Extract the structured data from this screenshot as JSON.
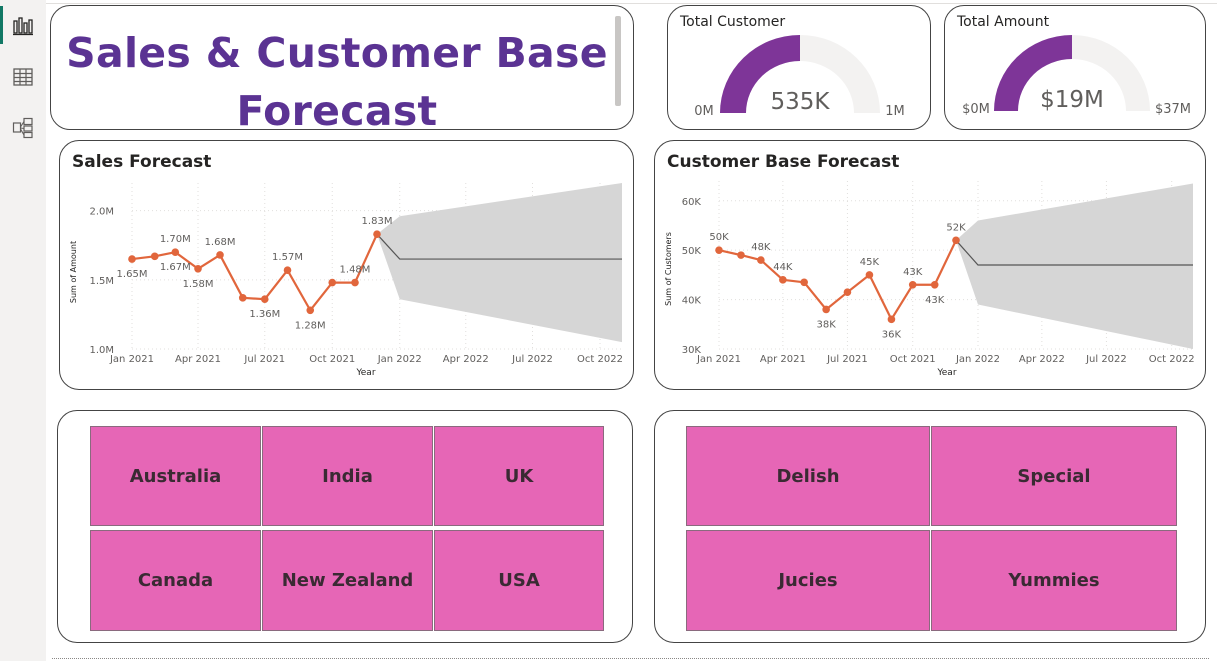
{
  "nav": {
    "items": [
      {
        "name": "report-view",
        "icon": "bar-chart-icon",
        "active": true
      },
      {
        "name": "table-view",
        "icon": "table-icon",
        "active": false
      },
      {
        "name": "model-view",
        "icon": "model-icon",
        "active": false
      }
    ]
  },
  "header": {
    "title": "Sales & Customer Base Forecast"
  },
  "kpis": [
    {
      "title": "Total Customer",
      "value": "535K",
      "min_label": "0M",
      "max_label": "1M",
      "fill_fraction": 0.5
    },
    {
      "title": "Total Amount",
      "value": "$19M",
      "min_label": "$0M",
      "max_label": "$37M",
      "fill_fraction": 0.5
    }
  ],
  "colors": {
    "accent": "#5b3393",
    "gauge_fill": "#7e3598",
    "gauge_track": "#f3f2f1",
    "series_line": "#e1663c",
    "forecast_band": "#d6d6d6",
    "forecast_line": "#555555",
    "tile_fill": "#e666b6"
  },
  "chart_data": [
    {
      "type": "line",
      "title": "Sales Forecast",
      "xlabel": "Year",
      "ylabel": "Sum of Amount",
      "ylim": [
        1000000,
        2200000
      ],
      "y_ticks": [
        1000000,
        1500000,
        2000000
      ],
      "y_tick_labels": [
        "1.0M",
        "1.5M",
        "2.0M"
      ],
      "x_ticks": [
        "2021-01-01",
        "2021-04-01",
        "2021-07-01",
        "2021-10-01",
        "2022-01-01",
        "2022-04-01",
        "2022-07-01",
        "2022-10-01"
      ],
      "x_tick_labels": [
        "Jan 2021",
        "Apr 2021",
        "Jul 2021",
        "Oct 2021",
        "Jan 2022",
        "Apr 2022",
        "Jul 2022",
        "Oct 2022"
      ],
      "x_domain": [
        "2021-01-01",
        "2022-10-31"
      ],
      "grid": true,
      "series": [
        {
          "points": [
            {
              "x": "2021-01-01",
              "y": 1650000,
              "label": "1.65M",
              "lp": "below"
            },
            {
              "x": "2021-02-01",
              "y": 1670000
            },
            {
              "x": "2021-03-01",
              "y": 1700000,
              "label": "1.70M",
              "lp": "above"
            },
            {
              "x": "2021-04-01",
              "y": 1580000,
              "label": "1.58M",
              "lp": "below"
            },
            {
              "x": "2021-05-01",
              "y": 1680000,
              "label": "1.68M",
              "lp": "above"
            },
            {
              "x": "2021-06-01",
              "y": 1370000
            },
            {
              "x": "2021-07-01",
              "y": 1360000,
              "label": "1.36M",
              "lp": "below"
            },
            {
              "x": "2021-08-01",
              "y": 1570000,
              "label": "1.57M",
              "lp": "above"
            },
            {
              "x": "2021-09-01",
              "y": 1280000,
              "label": "1.28M",
              "lp": "below"
            },
            {
              "x": "2021-10-01",
              "y": 1480000
            },
            {
              "x": "2021-11-01",
              "y": 1480000,
              "label": "1.48M",
              "lp": "above"
            },
            {
              "x": "2021-12-01",
              "y": 1830000,
              "label": "1.83M",
              "lp": "above"
            }
          ],
          "extra_labels": [
            {
              "x": "2021-03-01",
              "y": 1700000,
              "label": "1.67M",
              "lp": "below"
            }
          ]
        }
      ],
      "forecast": {
        "x": [
          "2021-12-01",
          "2022-01-01",
          "2022-10-31"
        ],
        "value": [
          1830000,
          1650000,
          1650000
        ],
        "lower": [
          1830000,
          1360000,
          1050000
        ],
        "upper": [
          1830000,
          1960000,
          2200000
        ]
      }
    },
    {
      "type": "line",
      "title": "Customer Base Forecast",
      "xlabel": "Year",
      "ylabel": "Sum of Customers",
      "ylim": [
        30000,
        64000
      ],
      "y_ticks": [
        30000,
        40000,
        50000,
        60000
      ],
      "y_tick_labels": [
        "30K",
        "40K",
        "50K",
        "60K"
      ],
      "x_ticks": [
        "2021-01-01",
        "2021-04-01",
        "2021-07-01",
        "2021-10-01",
        "2022-01-01",
        "2022-04-01",
        "2022-07-01",
        "2022-10-01"
      ],
      "x_tick_labels": [
        "Jan 2021",
        "Apr 2021",
        "Jul 2021",
        "Oct 2021",
        "Jan 2022",
        "Apr 2022",
        "Jul 2022",
        "Oct 2022"
      ],
      "x_domain": [
        "2021-01-01",
        "2022-10-31"
      ],
      "grid": true,
      "series": [
        {
          "points": [
            {
              "x": "2021-01-01",
              "y": 50000,
              "label": "50K",
              "lp": "above"
            },
            {
              "x": "2021-02-01",
              "y": 49000
            },
            {
              "x": "2021-03-01",
              "y": 48000,
              "label": "48K",
              "lp": "above"
            },
            {
              "x": "2021-04-01",
              "y": 44000,
              "label": "44K",
              "lp": "above"
            },
            {
              "x": "2021-05-01",
              "y": 43500
            },
            {
              "x": "2021-06-01",
              "y": 38000,
              "label": "38K",
              "lp": "below"
            },
            {
              "x": "2021-07-01",
              "y": 41500
            },
            {
              "x": "2021-08-01",
              "y": 45000,
              "label": "45K",
              "lp": "above"
            },
            {
              "x": "2021-09-01",
              "y": 36000,
              "label": "36K",
              "lp": "below"
            },
            {
              "x": "2021-10-01",
              "y": 43000,
              "label": "43K",
              "lp": "above"
            },
            {
              "x": "2021-11-01",
              "y": 43000,
              "label": "43K",
              "lp": "below"
            },
            {
              "x": "2021-12-01",
              "y": 52000,
              "label": "52K",
              "lp": "above"
            }
          ]
        }
      ],
      "forecast": {
        "x": [
          "2021-12-01",
          "2022-01-01",
          "2022-10-31"
        ],
        "value": [
          52000,
          47000,
          47000
        ],
        "lower": [
          52000,
          39000,
          30000
        ],
        "upper": [
          52000,
          56000,
          63500
        ]
      }
    }
  ],
  "slicers": {
    "countries": [
      "Australia",
      "India",
      "UK",
      "Canada",
      "New Zealand",
      "USA"
    ],
    "products": [
      "Delish",
      "Special",
      "Jucies",
      "Yummies"
    ]
  }
}
